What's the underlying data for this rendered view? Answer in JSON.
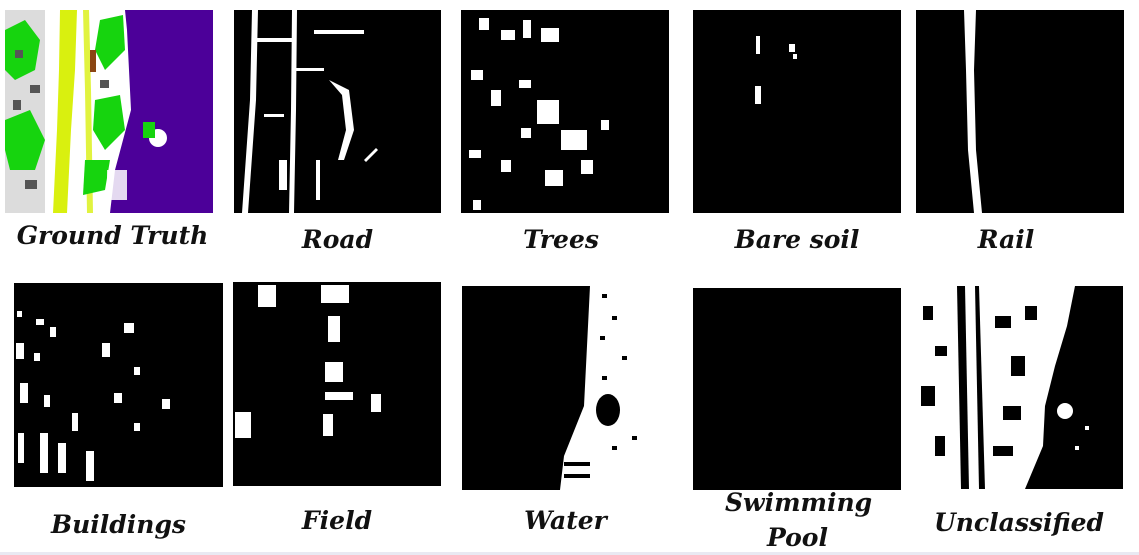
{
  "panels": [
    {
      "id": "ground-truth",
      "caption": "Ground Truth"
    },
    {
      "id": "road",
      "caption": "Road"
    },
    {
      "id": "trees",
      "caption": "Trees"
    },
    {
      "id": "bare-soil",
      "caption": "Bare soil"
    },
    {
      "id": "rail",
      "caption": "Rail"
    },
    {
      "id": "buildings",
      "caption": "Buildings"
    },
    {
      "id": "field",
      "caption": "Field"
    },
    {
      "id": "water",
      "caption": "Water"
    },
    {
      "id": "swimming-pool",
      "caption": "Swimming Pool"
    },
    {
      "id": "unclassified",
      "caption": "Unclassified"
    }
  ],
  "colors": {
    "background": "#000000",
    "foreground": "#ffffff",
    "water": "#4c0099",
    "trees": "#16d40e",
    "rail": "#d9f00f",
    "buildings": "#7d7d7d",
    "bare_soil": "#8b4513"
  }
}
